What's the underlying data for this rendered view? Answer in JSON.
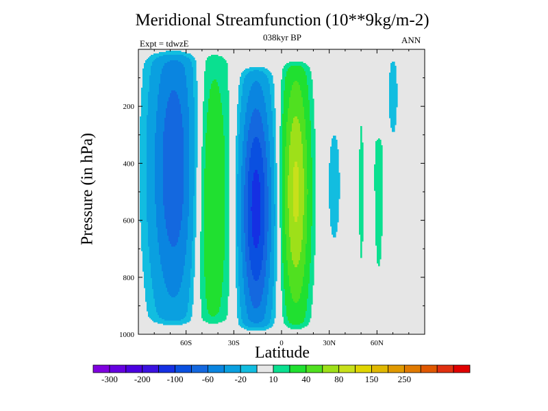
{
  "chart_data": {
    "type": "heatmap",
    "title": "Meridional Streamfunction (10**9kg/m-2)",
    "subtitle": "038kyr BP",
    "left_note": "Expt = tdwzE",
    "right_note": "ANN",
    "xlabel": "Latitude",
    "ylabel": "Pressure (in hPa)",
    "xlim": [
      -90,
      90
    ],
    "ylim": [
      1000,
      0
    ],
    "y_inverted": true,
    "x_ticks": [
      {
        "value": -60,
        "label": "60S"
      },
      {
        "value": -30,
        "label": "30S"
      },
      {
        "value": 0,
        "label": "0"
      },
      {
        "value": 30,
        "label": "30N"
      },
      {
        "value": 60,
        "label": "60N"
      }
    ],
    "y_ticks": [
      {
        "value": 200,
        "label": "200"
      },
      {
        "value": 400,
        "label": "400"
      },
      {
        "value": 600,
        "label": "600"
      },
      {
        "value": 800,
        "label": "800"
      },
      {
        "value": 1000,
        "label": "1000"
      }
    ],
    "missing_color": "#e6e6e6",
    "colorbar": {
      "colors": [
        "#7f00df",
        "#6500e0",
        "#4b00e0",
        "#3b12e0",
        "#1530e3",
        "#0a50e0",
        "#1468df",
        "#0a85e0",
        "#0aa0e0",
        "#12bde0",
        "#e6e6e6",
        "#0ae090",
        "#20e030",
        "#50e020",
        "#9ee019",
        "#c8e01b",
        "#e0d500",
        "#e0b800",
        "#e09900",
        "#e07a00",
        "#e05800",
        "#e03010",
        "#e00000"
      ],
      "labels": [
        "-300",
        "-200",
        "-100",
        "-60",
        "-20",
        "10",
        "40",
        "80",
        "150",
        "250"
      ]
    },
    "field": {
      "levels": [
        -300,
        -250,
        -200,
        -150,
        -100,
        -80,
        -60,
        -40,
        -20,
        -10,
        10,
        20,
        40,
        60,
        80,
        100,
        150,
        200,
        250,
        300
      ],
      "cells": [
        {
          "name": "south-cell-1",
          "lat": -67,
          "p": 420,
          "amp": -78,
          "wlat": 11,
          "wp": 400,
          "top": 20,
          "bottom": 960
        },
        {
          "name": "south-cell-2",
          "lat": -45,
          "p": 520,
          "amp": 42,
          "wlat": 9,
          "wp": 420,
          "top": 15,
          "bottom": 960
        },
        {
          "name": "hadley-south",
          "lat": -16,
          "p": 560,
          "amp": -110,
          "wlat": 7,
          "wp": 320,
          "top": 70,
          "bottom": 975
        },
        {
          "name": "hadley-north",
          "lat": 9,
          "p": 500,
          "amp": 85,
          "wlat": 6,
          "wp": 320,
          "top": 50,
          "bottom": 975
        },
        {
          "name": "ferrel-north",
          "lat": 33,
          "p": 480,
          "amp": -14,
          "wlat": 4,
          "wp": 220,
          "top": 230,
          "bottom": 800
        },
        {
          "name": "north-cell-1",
          "lat": 50,
          "p": 500,
          "amp": 12,
          "wlat": 2,
          "wp": 380,
          "top": 10,
          "bottom": 900
        },
        {
          "name": "north-cell-2",
          "lat": 61,
          "p": 450,
          "amp": 14,
          "wlat": 3,
          "wp": 380,
          "top": 300,
          "bottom": 980
        },
        {
          "name": "polar-north",
          "lat": 70,
          "p": 160,
          "amp": -14,
          "wlat": 3,
          "wp": 160,
          "top": 10,
          "bottom": 380
        }
      ]
    }
  }
}
